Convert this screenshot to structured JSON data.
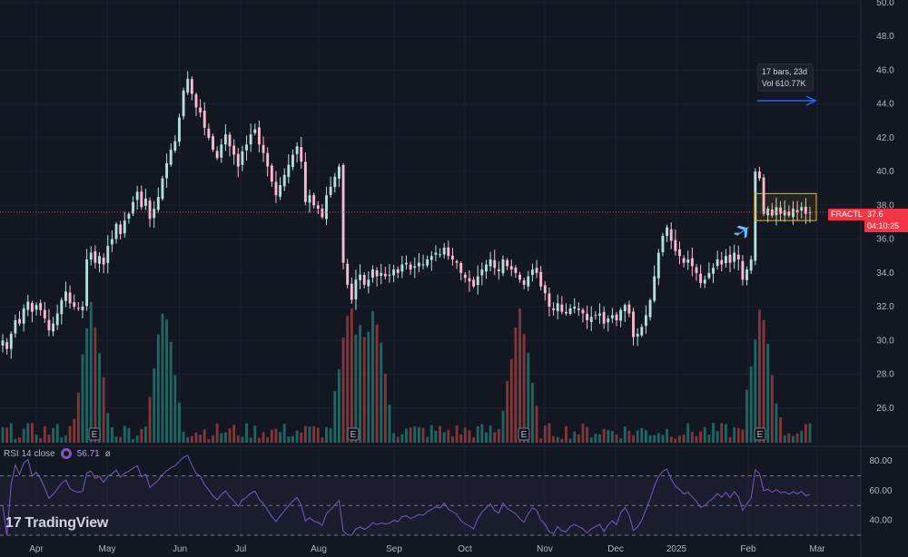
{
  "chart_data": {
    "type": "candlestick",
    "x_axis": {
      "months": [
        "Apr",
        "May",
        "Jun",
        "Jul",
        "Aug",
        "Sep",
        "Oct",
        "Nov",
        "Dec",
        "2025",
        "Feb",
        "Mar"
      ]
    },
    "price_axis": {
      "range": [
        24,
        50
      ],
      "ticks": [
        "26.0",
        "28.0",
        "30.0",
        "32.0",
        "34.0",
        "36.0",
        "38.0",
        "40.0",
        "42.0",
        "44.0",
        "46.0",
        "48.0",
        "50.0"
      ]
    },
    "closes": [
      30.0,
      29.5,
      30.4,
      31.2,
      31.0,
      31.9,
      32.3,
      31.7,
      32.1,
      31.8,
      31.3,
      30.6,
      31.0,
      31.6,
      32.4,
      32.9,
      32.2,
      32.0,
      31.9,
      32.0,
      34.8,
      35.2,
      34.6,
      35.0,
      34.5,
      35.6,
      36.0,
      36.9,
      36.3,
      37.1,
      37.5,
      38.2,
      38.8,
      37.9,
      38.4,
      37.2,
      37.8,
      38.5,
      39.6,
      40.5,
      41.3,
      41.8,
      43.2,
      44.8,
      45.5,
      44.6,
      43.8,
      43.5,
      42.6,
      42.0,
      41.3,
      40.8,
      41.6,
      42.2,
      41.5,
      41.0,
      40.3,
      41.2,
      41.6,
      42.2,
      42.5,
      41.6,
      41.1,
      40.3,
      39.4,
      38.6,
      39.2,
      39.8,
      40.4,
      41.0,
      41.5,
      40.6,
      38.2,
      38.6,
      38.0,
      37.8,
      37.3,
      38.6,
      39.1,
      39.7,
      40.3,
      34.6,
      33.3,
      32.4,
      33.6,
      33.9,
      33.3,
      33.6,
      34.2,
      33.8,
      34.0,
      33.8,
      33.9,
      34.2,
      34.0,
      34.5,
      34.6,
      34.2,
      34.4,
      34.6,
      34.5,
      34.8,
      35.0,
      35.2,
      35.1,
      35.5,
      35.0,
      34.8,
      34.6,
      34.0,
      33.7,
      33.5,
      33.2,
      33.8,
      34.2,
      34.5,
      34.8,
      34.3,
      34.1,
      34.8,
      34.4,
      34.2,
      34.0,
      33.6,
      33.3,
      33.8,
      34.2,
      34.0,
      33.2,
      32.8,
      32.0,
      31.8,
      32.2,
      31.7,
      31.6,
      31.9,
      32.0,
      31.8,
      31.6,
      31.2,
      31.4,
      31.5,
      31.6,
      31.0,
      31.3,
      31.5,
      31.2,
      31.8,
      32.1,
      31.6,
      30.2,
      30.4,
      30.8,
      31.5,
      32.4,
      33.8,
      35.2,
      36.2,
      36.7,
      35.9,
      35.3,
      35.0,
      34.6,
      34.8,
      34.4,
      34.0,
      33.4,
      33.6,
      34.0,
      34.3,
      34.8,
      34.5,
      35.0,
      34.6,
      35.2,
      34.8,
      33.6,
      34.2,
      34.8,
      40.0,
      39.6,
      37.5,
      37.8,
      37.4,
      37.9,
      37.5,
      37.7,
      37.4,
      37.8,
      37.6,
      37.9,
      37.5,
      37.6
    ],
    "volume_pattern": "spikes near the E (earnings) markers",
    "earnings_markers": [
      "E",
      "E",
      "E",
      "E"
    ],
    "last": {
      "symbol": "FRACTL",
      "price": "37.6",
      "countdown": "04:10:25"
    },
    "measure_tooltip": {
      "line1": "17 bars, 23d",
      "line2": "Vol 610.77K"
    },
    "rsi": {
      "label": "RSI 14 close",
      "value": "56.71",
      "mark": "ø",
      "range": [
        30,
        85
      ],
      "levels": [
        30,
        50,
        70
      ],
      "ticks": [
        "40.00",
        "60.00",
        "80.00"
      ]
    },
    "colors": {
      "up": "#26a69a",
      "down": "#ef5350",
      "rsi": "#7e57c2",
      "background": "#131722",
      "price_tag": "#f23645",
      "range_box": "#f0b90b",
      "arrow": "#2962ff"
    }
  },
  "branding": {
    "logo_text": "TradingView",
    "logo_mark": "17"
  }
}
